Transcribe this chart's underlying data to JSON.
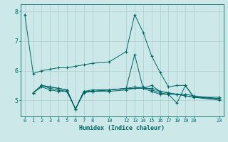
{
  "xlabel": "Humidex (Indice chaleur)",
  "background_color": "#cce8e8",
  "grid_color": "#aacfcf",
  "line_color": "#006666",
  "xlim": [
    -0.5,
    23.5
  ],
  "ylim": [
    4.45,
    8.25
  ],
  "yticks": [
    5,
    6,
    7,
    8
  ],
  "xticks": [
    0,
    1,
    2,
    3,
    4,
    5,
    6,
    7,
    8,
    10,
    12,
    13,
    14,
    15,
    16,
    17,
    18,
    19,
    20,
    23
  ],
  "series": [
    {
      "x": [
        0,
        1,
        2,
        3,
        4,
        5,
        6,
        7,
        8,
        10,
        12,
        13,
        14,
        15,
        16,
        17,
        18,
        19,
        20,
        23
      ],
      "y": [
        7.9,
        5.9,
        6.0,
        6.05,
        6.1,
        6.1,
        6.15,
        6.2,
        6.25,
        6.3,
        6.65,
        7.9,
        7.3,
        6.5,
        5.95,
        5.45,
        5.5,
        5.5,
        5.1,
        5.1
      ]
    },
    {
      "x": [
        1,
        2,
        3,
        4,
        5,
        6,
        7,
        8,
        10,
        12,
        13,
        14,
        15,
        16,
        17,
        18,
        19,
        20,
        23
      ],
      "y": [
        5.25,
        5.45,
        5.35,
        5.3,
        5.3,
        4.7,
        5.25,
        5.3,
        5.3,
        5.35,
        5.4,
        5.4,
        5.3,
        5.2,
        5.2,
        4.9,
        5.5,
        5.1,
        5.0
      ]
    },
    {
      "x": [
        1,
        2,
        3,
        4,
        5,
        6,
        7,
        8,
        10,
        12,
        13,
        14,
        15,
        16,
        17,
        18,
        19,
        20,
        23
      ],
      "y": [
        5.25,
        5.5,
        5.4,
        5.35,
        5.3,
        4.7,
        5.3,
        5.35,
        5.35,
        5.4,
        5.4,
        5.45,
        5.35,
        5.25,
        5.2,
        5.2,
        5.2,
        5.15,
        5.05
      ]
    },
    {
      "x": [
        1,
        2,
        3,
        4,
        5,
        6,
        7,
        8,
        10,
        12,
        13,
        14,
        15,
        16,
        17,
        18,
        19,
        20,
        23
      ],
      "y": [
        5.25,
        5.5,
        5.45,
        5.4,
        5.35,
        4.7,
        5.3,
        5.3,
        5.35,
        5.4,
        5.45,
        5.4,
        5.4,
        5.3,
        5.25,
        5.2,
        5.15,
        5.1,
        5.05
      ]
    },
    {
      "x": [
        1,
        2,
        3,
        4,
        5,
        6,
        7,
        8,
        10,
        12,
        13,
        14,
        15,
        16,
        17,
        18,
        19,
        20,
        23
      ],
      "y": [
        5.25,
        5.5,
        5.45,
        5.4,
        5.35,
        4.7,
        5.3,
        5.3,
        5.35,
        5.4,
        6.55,
        5.4,
        5.5,
        5.3,
        5.25,
        5.2,
        5.15,
        5.1,
        5.05
      ]
    }
  ]
}
